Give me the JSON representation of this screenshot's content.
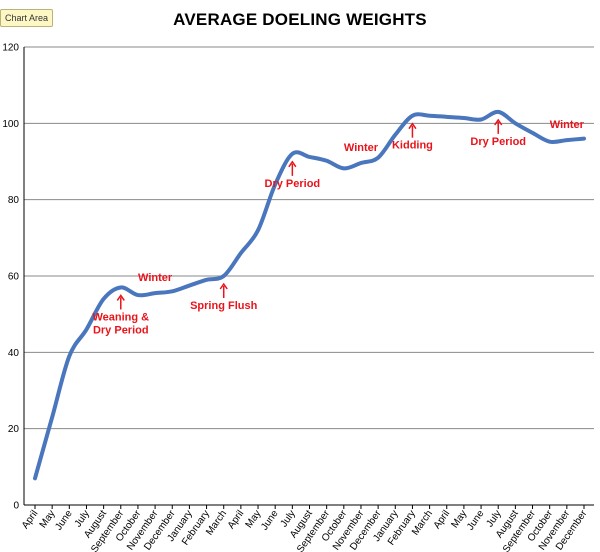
{
  "chart_area_tag": "Chart Area",
  "chart_data": {
    "type": "line",
    "title": "AVERAGE DOELING WEIGHTS",
    "xlabel": "",
    "ylabel": "",
    "ylim": [
      0,
      120
    ],
    "yticks": [
      0,
      20,
      40,
      60,
      80,
      100,
      120
    ],
    "grid": true,
    "legend": "none",
    "categories": [
      "April",
      "May",
      "June",
      "July",
      "August",
      "September",
      "October",
      "November",
      "December",
      "January",
      "February",
      "March",
      "April",
      "May",
      "June",
      "July",
      "August",
      "September",
      "October",
      "November",
      "December",
      "January",
      "February",
      "March",
      "April",
      "May",
      "June",
      "July",
      "August",
      "September",
      "October",
      "November",
      "December"
    ],
    "series": [
      {
        "color": "#4a76bd",
        "values": [
          7,
          23,
          39,
          46,
          54,
          57,
          55,
          55.5,
          56,
          57.5,
          59,
          60,
          66,
          72,
          84,
          92,
          91.2,
          90.2,
          88.2,
          89.6,
          91,
          97,
          102,
          102,
          101.7,
          101.4,
          101,
          103,
          100,
          97.5,
          95.2,
          95.6,
          96
        ]
      }
    ],
    "annotations": [
      {
        "text": "Weaning &\nDry Period",
        "category_index": 5,
        "arrow": true
      },
      {
        "text": "Winter",
        "category_index": 7,
        "arrow": false
      },
      {
        "text": "Spring Flush",
        "category_index": 11,
        "arrow": true
      },
      {
        "text": "Dry Period",
        "category_index": 15,
        "arrow": true
      },
      {
        "text": "Winter",
        "category_index": 19,
        "arrow": false
      },
      {
        "text": "Kidding",
        "category_index": 22,
        "arrow": true
      },
      {
        "text": "Dry Period",
        "category_index": 27,
        "arrow": true
      },
      {
        "text": "Winter",
        "category_index": 31,
        "arrow": false
      }
    ],
    "colors": {
      "line": "#4a76bd",
      "annotation": "#e8141b",
      "grid": "#8a8a8a",
      "axis": "#000000"
    }
  }
}
